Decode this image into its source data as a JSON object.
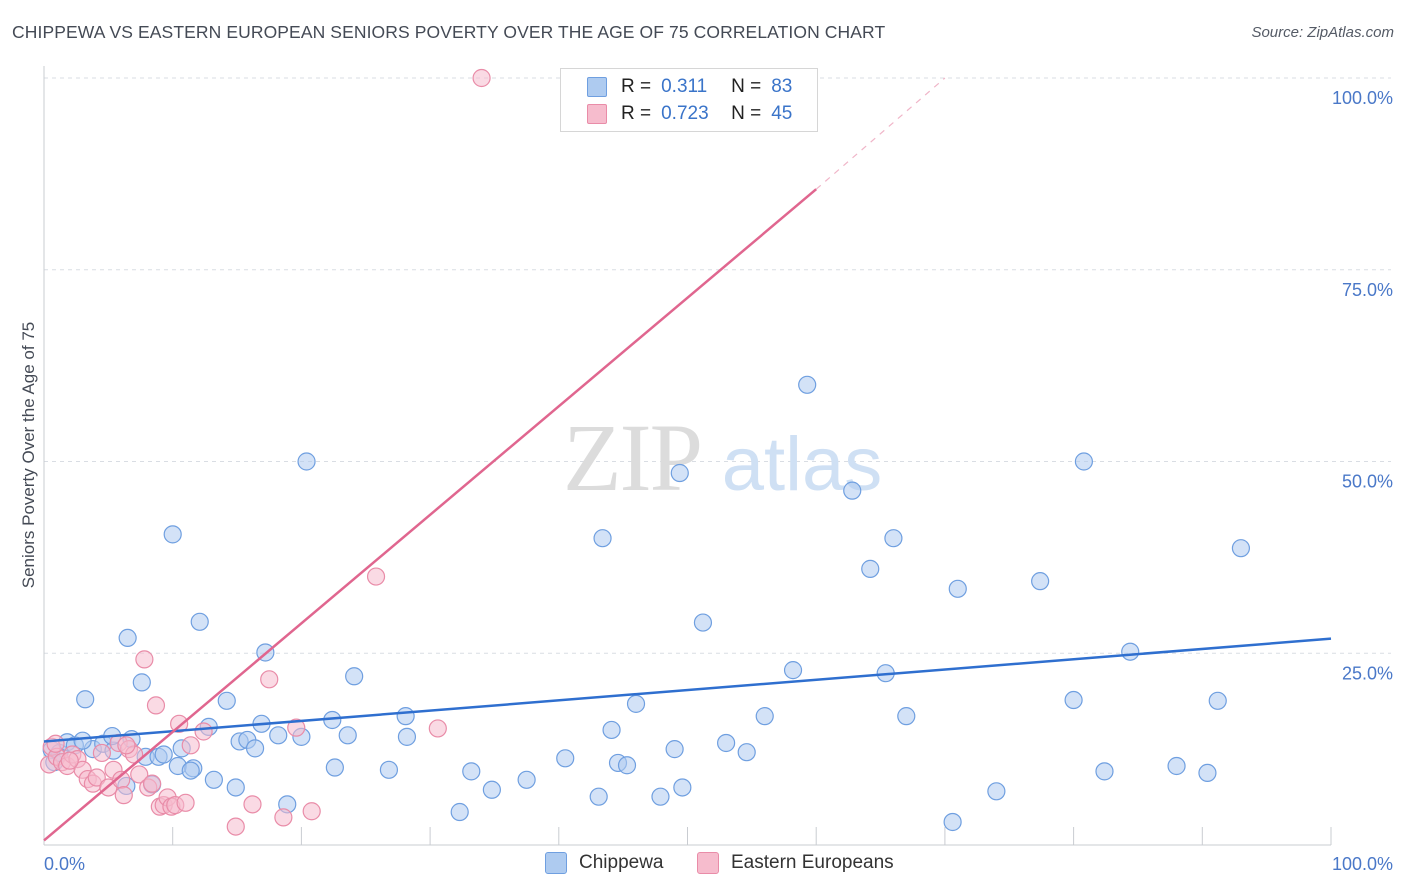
{
  "header": {
    "title": "CHIPPEWA VS EASTERN EUROPEAN SENIORS POVERTY OVER THE AGE OF 75 CORRELATION CHART",
    "source": "Source: ZipAtlas.com"
  },
  "watermark": {
    "zip": "ZIP",
    "atlas": "atlas"
  },
  "colors": {
    "blue_fill": "#aecbf0",
    "blue_stroke": "#6f9fe0",
    "blue_line": "#2f6fcf",
    "pink_fill": "#f6bccd",
    "pink_stroke": "#e98ca8",
    "pink_line": "#e0668f",
    "tick_text": "#4a78c8",
    "grid": "#d9dde3"
  },
  "legend": {
    "rows": [
      {
        "r_label": "R =",
        "r_value": "0.311",
        "n_label": "N =",
        "n_value": "83",
        "color": "#aecbf0",
        "border": "#6f9fe0"
      },
      {
        "r_label": "R =",
        "r_value": "0.723",
        "n_label": "N =",
        "n_value": "45",
        "color": "#f6bccd",
        "border": "#e98ca8"
      }
    ]
  },
  "bottom_legend": {
    "items": [
      {
        "label": "Chippewa",
        "color": "#aecbf0",
        "border": "#6f9fe0"
      },
      {
        "label": "Eastern Europeans",
        "color": "#f6bccd",
        "border": "#e98ca8"
      }
    ]
  },
  "chart_data": {
    "type": "scatter",
    "title": "CHIPPEWA VS EASTERN EUROPEAN SENIORS POVERTY OVER THE AGE OF 75 CORRELATION CHART",
    "xlabel": "",
    "ylabel": "Seniors Poverty Over the Age of 75",
    "xlim": [
      0,
      100
    ],
    "ylim": [
      0,
      100
    ],
    "x_tick_labels": [
      {
        "value": 0,
        "label": "0.0%"
      },
      {
        "value": 100,
        "label": "100.0%"
      }
    ],
    "y_tick_labels": [
      {
        "value": 100,
        "label": "100.0%"
      },
      {
        "value": 75,
        "label": "75.0%"
      },
      {
        "value": 50,
        "label": "50.0%"
      },
      {
        "value": 25,
        "label": "25.0%"
      }
    ],
    "grid": true,
    "legend_position": "top-center",
    "series": [
      {
        "name": "Chippewa",
        "color": "#aecbf0",
        "r": 0.311,
        "n": 83,
        "trend": {
          "x": [
            0,
            100
          ],
          "y": [
            13.5,
            26.9
          ]
        },
        "points": [
          [
            0.6,
            12.4
          ],
          [
            0.8,
            10.8
          ],
          [
            1.2,
            12.0
          ],
          [
            1.8,
            13.4
          ],
          [
            2.4,
            13.0
          ],
          [
            3.2,
            19.0
          ],
          [
            3.8,
            12.5
          ],
          [
            4.6,
            13.2
          ],
          [
            5.4,
            12.3
          ],
          [
            5.3,
            14.2
          ],
          [
            6.4,
            7.7
          ],
          [
            6.5,
            27.0
          ],
          [
            6.8,
            13.8
          ],
          [
            7.6,
            21.2
          ],
          [
            7.9,
            11.5
          ],
          [
            8.4,
            7.9
          ],
          [
            8.9,
            11.5
          ],
          [
            10.0,
            40.5
          ],
          [
            10.4,
            10.3
          ],
          [
            10.7,
            12.6
          ],
          [
            11.6,
            10.0
          ],
          [
            12.1,
            29.1
          ],
          [
            12.8,
            15.4
          ],
          [
            13.2,
            8.5
          ],
          [
            14.2,
            18.8
          ],
          [
            14.9,
            7.5
          ],
          [
            15.2,
            13.5
          ],
          [
            15.8,
            13.7
          ],
          [
            16.4,
            12.6
          ],
          [
            16.9,
            15.8
          ],
          [
            17.2,
            25.1
          ],
          [
            18.2,
            14.3
          ],
          [
            18.9,
            5.3
          ],
          [
            20.0,
            14.1
          ],
          [
            20.4,
            50.0
          ],
          [
            22.4,
            16.3
          ],
          [
            22.6,
            10.1
          ],
          [
            23.6,
            14.3
          ],
          [
            24.1,
            22.0
          ],
          [
            26.8,
            9.8
          ],
          [
            28.1,
            16.8
          ],
          [
            28.2,
            14.1
          ],
          [
            32.3,
            4.3
          ],
          [
            33.2,
            9.6
          ],
          [
            34.8,
            7.2
          ],
          [
            37.5,
            8.5
          ],
          [
            40.5,
            11.3
          ],
          [
            43.1,
            6.3
          ],
          [
            43.4,
            40.0
          ],
          [
            44.1,
            15.0
          ],
          [
            44.6,
            10.7
          ],
          [
            45.3,
            10.4
          ],
          [
            46.0,
            18.4
          ],
          [
            47.9,
            6.3
          ],
          [
            49.0,
            12.5
          ],
          [
            49.4,
            48.5
          ],
          [
            49.6,
            7.5
          ],
          [
            51.2,
            29.0
          ],
          [
            53.0,
            13.3
          ],
          [
            54.6,
            12.1
          ],
          [
            56.0,
            16.8
          ],
          [
            58.2,
            22.8
          ],
          [
            59.3,
            60.0
          ],
          [
            62.8,
            46.2
          ],
          [
            64.2,
            36.0
          ],
          [
            65.4,
            22.4
          ],
          [
            66.0,
            40.0
          ],
          [
            67.0,
            16.8
          ],
          [
            70.6,
            3.0
          ],
          [
            71.0,
            33.4
          ],
          [
            74.0,
            7.0
          ],
          [
            77.4,
            34.4
          ],
          [
            80.0,
            18.9
          ],
          [
            80.8,
            50.0
          ],
          [
            82.4,
            9.6
          ],
          [
            84.4,
            25.2
          ],
          [
            88.0,
            10.3
          ],
          [
            90.4,
            9.4
          ],
          [
            91.2,
            18.8
          ],
          [
            93.0,
            38.7
          ],
          [
            3.0,
            13.6
          ],
          [
            9.3,
            11.8
          ],
          [
            11.4,
            9.7
          ]
        ]
      },
      {
        "name": "Eastern Europeans",
        "color": "#f6bccd",
        "r": 0.723,
        "n": 45,
        "trend": {
          "x": [
            0,
            60
          ],
          "y": [
            0.6,
            85.5
          ]
        },
        "trend_dashed": {
          "x": [
            60,
            70
          ],
          "y": [
            85.5,
            100
          ]
        },
        "points": [
          [
            0.4,
            10.5
          ],
          [
            0.6,
            12.8
          ],
          [
            1.0,
            11.5
          ],
          [
            1.4,
            10.8
          ],
          [
            1.8,
            10.3
          ],
          [
            2.2,
            11.8
          ],
          [
            2.6,
            11.2
          ],
          [
            3.0,
            9.8
          ],
          [
            3.4,
            8.6
          ],
          [
            3.8,
            8.0
          ],
          [
            4.1,
            8.8
          ],
          [
            4.5,
            12.0
          ],
          [
            5.0,
            7.5
          ],
          [
            5.4,
            9.8
          ],
          [
            5.8,
            13.3
          ],
          [
            6.0,
            8.5
          ],
          [
            6.2,
            6.5
          ],
          [
            6.6,
            12.5
          ],
          [
            7.0,
            11.8
          ],
          [
            7.4,
            9.2
          ],
          [
            7.8,
            24.2
          ],
          [
            8.1,
            7.5
          ],
          [
            8.4,
            8.0
          ],
          [
            8.7,
            18.2
          ],
          [
            9.0,
            5.0
          ],
          [
            9.3,
            5.2
          ],
          [
            9.6,
            6.2
          ],
          [
            9.9,
            5.0
          ],
          [
            10.2,
            5.2
          ],
          [
            10.5,
            15.8
          ],
          [
            11.0,
            5.5
          ],
          [
            11.4,
            13.0
          ],
          [
            12.4,
            14.8
          ],
          [
            14.9,
            2.4
          ],
          [
            16.2,
            5.3
          ],
          [
            17.5,
            21.6
          ],
          [
            18.6,
            3.6
          ],
          [
            19.6,
            15.3
          ],
          [
            20.8,
            4.4
          ],
          [
            25.8,
            35.0
          ],
          [
            30.6,
            15.2
          ],
          [
            34.0,
            100.0
          ],
          [
            0.9,
            13.2
          ],
          [
            2.0,
            11.0
          ],
          [
            6.4,
            13.0
          ]
        ]
      }
    ]
  }
}
